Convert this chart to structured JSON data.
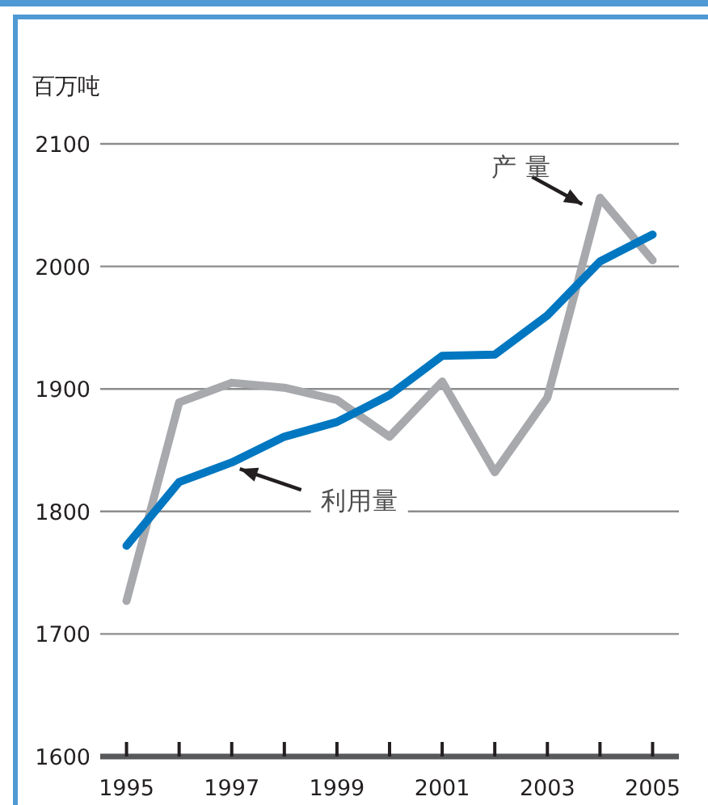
{
  "chart_data": {
    "type": "line",
    "ylabel": "百万吨",
    "x": [
      1995,
      1996,
      1997,
      1998,
      1999,
      2000,
      2001,
      2002,
      2003,
      2004,
      2005
    ],
    "series": [
      {
        "color": "#a7a9ac",
        "values": [
          1727,
          1889,
          1905,
          1901,
          1891,
          1861,
          1906,
          1832,
          1893,
          2056,
          2005
        ]
      },
      {
        "color": "#0077c0",
        "values": [
          1772,
          1824,
          1840,
          1861,
          1873,
          1895,
          1927,
          1928,
          1960,
          2004,
          2026
        ]
      }
    ],
    "xlim": [
      1994.5,
      2005.5
    ],
    "ylim": [
      1600,
      2100
    ],
    "xticks": [
      1995,
      {
        "value": 1996,
        "label": null
      },
      1997,
      {
        "value": 1998,
        "label": null
      },
      1999,
      {
        "value": 2000,
        "label": null
      },
      2001,
      {
        "value": 2002,
        "label": null
      },
      2003,
      {
        "value": 2004,
        "label": null
      },
      2005
    ],
    "yticks": [
      1600,
      1700,
      1800,
      1900,
      2000,
      2100
    ],
    "grid": "y",
    "marker": "none",
    "line_style": "solid",
    "annotations": [
      {
        "text": "产 量",
        "x": 2004,
        "y": 2056
      },
      {
        "text": "利用量",
        "x": 1997,
        "y": 1840
      }
    ]
  }
}
